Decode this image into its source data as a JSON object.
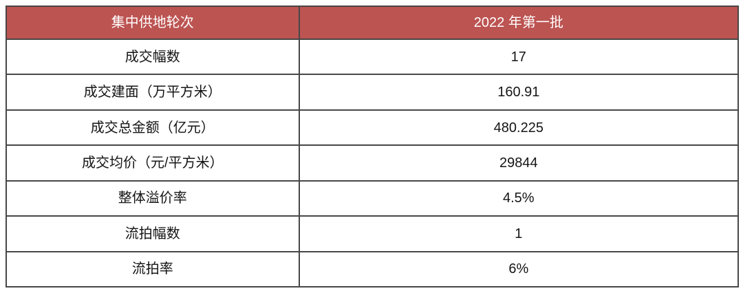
{
  "chart_data": {
    "type": "table",
    "columns": [
      "集中供地轮次",
      "2022 年第一批"
    ],
    "rows": [
      [
        "成交幅数",
        "17"
      ],
      [
        "成交建面（万平方米）",
        "160.91"
      ],
      [
        "成交总金额（亿元）",
        "480.225"
      ],
      [
        "成交均价（元/平方米）",
        "29844"
      ],
      [
        "整体溢价率",
        "4.5%"
      ],
      [
        "流拍幅数",
        "1"
      ],
      [
        "流拍率",
        "6%"
      ]
    ]
  },
  "colors": {
    "header_bg": "#BC5452",
    "header_text": "#FFFFFF",
    "border": "#474747",
    "body_text": "#141414",
    "background": "#FFFFFF"
  }
}
